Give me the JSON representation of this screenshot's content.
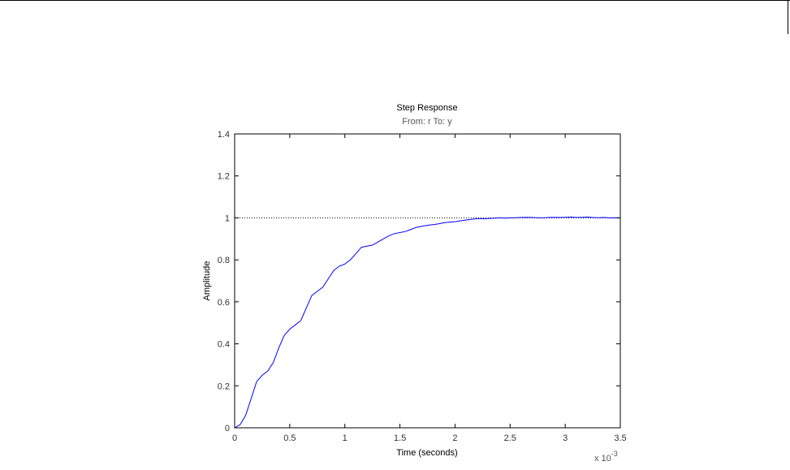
{
  "chart_data": {
    "type": "line",
    "title": "Step Response",
    "subtitle": "From: r  To: y",
    "xlabel": "Time (seconds)",
    "ylabel": "Amplitude",
    "x_exponent_label": "x 10",
    "x_exponent_power": "-3",
    "xlim": [
      0,
      3.5
    ],
    "ylim": [
      0,
      1.4
    ],
    "x_ticks": [
      0,
      0.5,
      1,
      1.5,
      2,
      2.5,
      3,
      3.5
    ],
    "x_tick_labels": [
      "0",
      "0.5",
      "1",
      "1.5",
      "2",
      "2.5",
      "3",
      "3.5"
    ],
    "y_ticks": [
      0,
      0.2,
      0.4,
      0.6,
      0.8,
      1.0,
      1.2,
      1.4
    ],
    "y_tick_labels": [
      "0",
      "0.2",
      "0.4",
      "0.6",
      "0.8",
      "1",
      "1.2",
      "1.4"
    ],
    "grid": false,
    "reference_line": {
      "y": 1.0,
      "style": "dotted",
      "color": "#000000"
    },
    "series": [
      {
        "color": "#0000ff",
        "x": [
          0,
          0.05,
          0.1,
          0.15,
          0.2,
          0.25,
          0.3,
          0.35,
          0.4,
          0.45,
          0.5,
          0.55,
          0.6,
          0.65,
          0.7,
          0.75,
          0.8,
          0.85,
          0.9,
          0.95,
          1.0,
          1.05,
          1.1,
          1.15,
          1.2,
          1.25,
          1.3,
          1.35,
          1.4,
          1.45,
          1.5,
          1.55,
          1.6,
          1.65,
          1.7,
          1.75,
          1.8,
          1.85,
          1.9,
          1.95,
          2.0,
          2.05,
          2.1,
          2.15,
          2.2,
          2.25,
          2.3,
          2.35,
          2.4,
          2.45,
          2.5,
          2.55,
          2.6,
          2.65,
          2.7,
          2.75,
          2.8,
          2.85,
          2.9,
          2.95,
          3.0,
          3.05,
          3.1,
          3.15,
          3.2,
          3.25,
          3.3,
          3.35,
          3.4,
          3.45,
          3.5
        ],
        "y": [
          0,
          0.015,
          0.06,
          0.14,
          0.22,
          0.25,
          0.27,
          0.31,
          0.38,
          0.44,
          0.47,
          0.49,
          0.51,
          0.57,
          0.63,
          0.65,
          0.67,
          0.71,
          0.75,
          0.77,
          0.78,
          0.8,
          0.83,
          0.86,
          0.865,
          0.87,
          0.885,
          0.9,
          0.915,
          0.925,
          0.93,
          0.935,
          0.945,
          0.955,
          0.96,
          0.965,
          0.968,
          0.972,
          0.977,
          0.98,
          0.982,
          0.986,
          0.99,
          0.993,
          0.997,
          0.996,
          0.997,
          0.998,
          1.0,
          0.999,
          1.0,
          1.001,
          1.002,
          1.003,
          1.002,
          1.001,
          1.0,
          1.002,
          1.003,
          1.002,
          1.003,
          1.004,
          1.002,
          1.003,
          1.004,
          1.002,
          1.001,
          1.002,
          1.0,
          1.001,
          1.0
        ]
      }
    ]
  }
}
